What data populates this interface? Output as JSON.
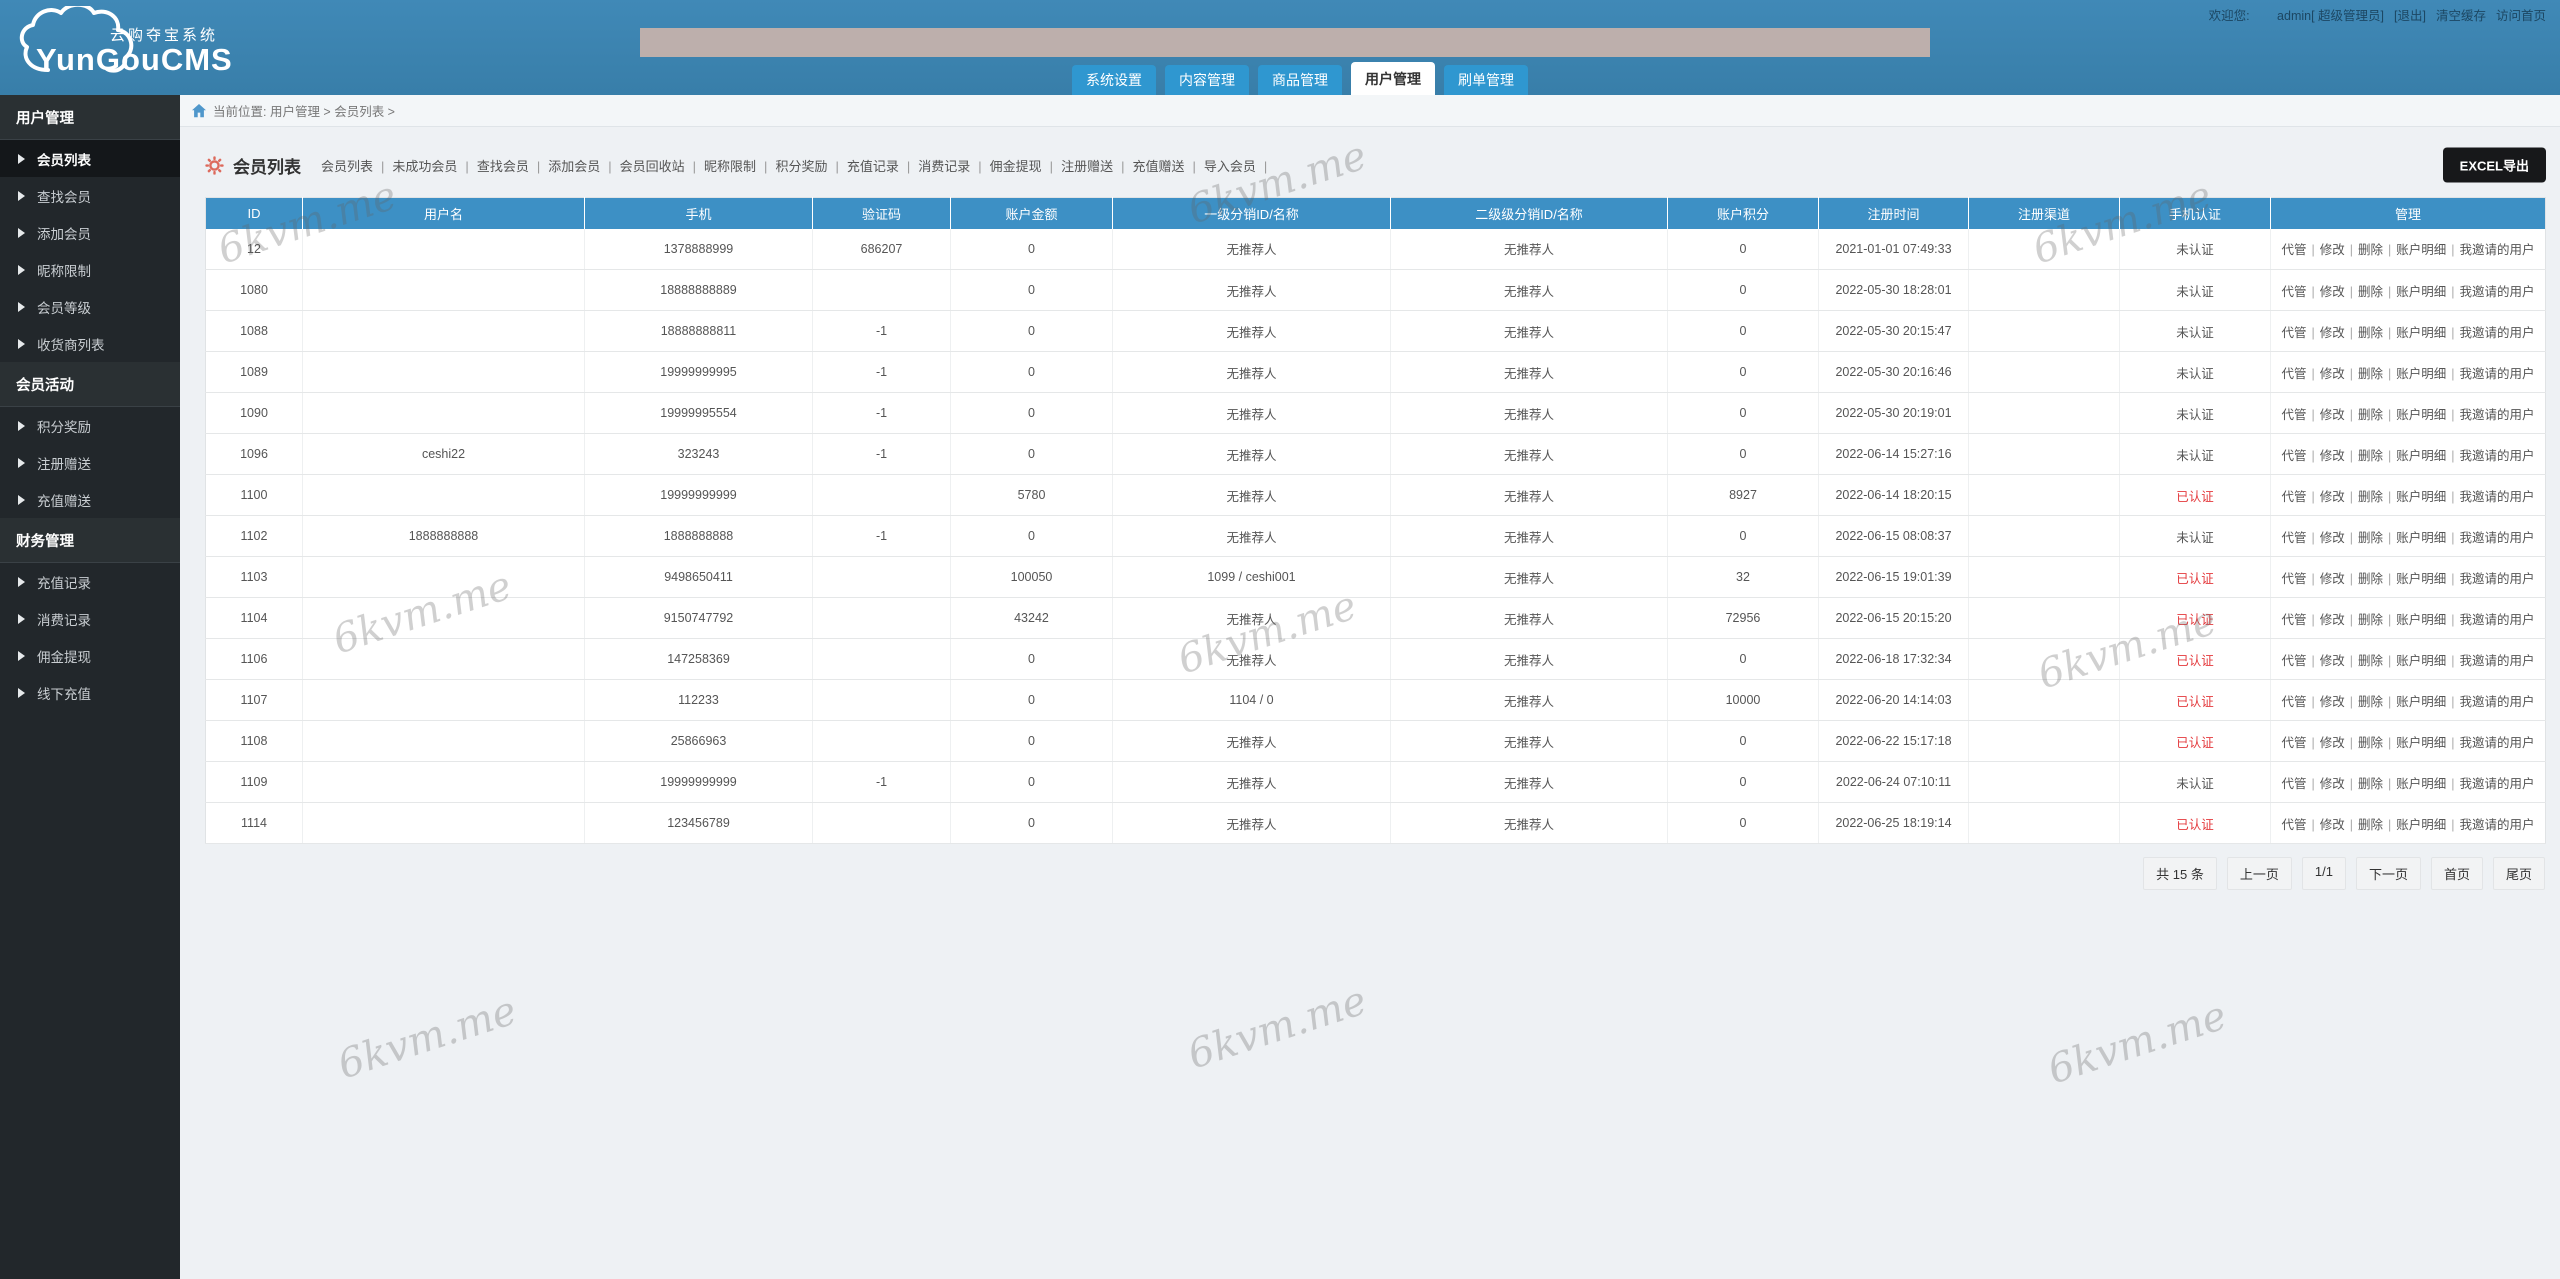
{
  "header": {
    "logo_title": "YunGouCMS",
    "logo_subtitle": "云购夺宝系统",
    "welcome_label": "欢迎您:",
    "user_links": [
      "admin[ 超级管理员]",
      "[退出]",
      "清空缓存",
      "访问首页"
    ],
    "tabs": [
      {
        "label": "系统设置",
        "active": false
      },
      {
        "label": "内容管理",
        "active": false
      },
      {
        "label": "商品管理",
        "active": false
      },
      {
        "label": "用户管理",
        "active": true
      },
      {
        "label": "刷单管理",
        "active": false
      }
    ]
  },
  "sidebar": {
    "sections": [
      {
        "title": "用户管理",
        "items": [
          {
            "label": "会员列表",
            "active": true
          },
          {
            "label": "查找会员",
            "active": false
          },
          {
            "label": "添加会员",
            "active": false
          },
          {
            "label": "昵称限制",
            "active": false
          },
          {
            "label": "会员等级",
            "active": false
          },
          {
            "label": "收货商列表",
            "active": false
          }
        ]
      },
      {
        "title": "会员活动",
        "items": [
          {
            "label": "积分奖励",
            "active": false
          },
          {
            "label": "注册赠送",
            "active": false
          },
          {
            "label": "充值赠送",
            "active": false
          }
        ]
      },
      {
        "title": "财务管理",
        "items": [
          {
            "label": "充值记录",
            "active": false
          },
          {
            "label": "消费记录",
            "active": false
          },
          {
            "label": "佣金提现",
            "active": false
          },
          {
            "label": "线下充值",
            "active": false
          }
        ]
      }
    ]
  },
  "breadcrumb": {
    "text": "当前位置: 用户管理 > 会员列表 >"
  },
  "toolbar": {
    "title": "会员列表",
    "links": [
      "会员列表",
      "未成功会员",
      "查找会员",
      "添加会员",
      "会员回收站",
      "昵称限制",
      "积分奖励",
      "充值记录",
      "消费记录",
      "佣金提现",
      "注册赠送",
      "充值赠送",
      "导入会员"
    ],
    "export_label": "EXCEL导出"
  },
  "table": {
    "headers": [
      "ID",
      "用户名",
      "手机",
      "验证码",
      "账户金额",
      "一级分销ID/名称",
      "二级级分销ID/名称",
      "账户积分",
      "注册时间",
      "注册渠道",
      "手机认证",
      "管理"
    ],
    "row_actions": [
      "代管",
      "修改",
      "删除",
      "账户明细",
      "我邀请的用户"
    ],
    "verified_ok_label": "已认证",
    "rows": [
      [
        "12",
        "",
        "1378888999",
        "686207",
        "0",
        "无推荐人",
        "无推荐人",
        "0",
        "2021-01-01 07:49:33",
        "",
        "未认证"
      ],
      [
        "1080",
        "",
        "18888888889",
        "",
        "0",
        "无推荐人",
        "无推荐人",
        "0",
        "2022-05-30 18:28:01",
        "",
        "未认证"
      ],
      [
        "1088",
        "",
        "18888888811",
        "-1",
        "0",
        "无推荐人",
        "无推荐人",
        "0",
        "2022-05-30 20:15:47",
        "",
        "未认证"
      ],
      [
        "1089",
        "",
        "19999999995",
        "-1",
        "0",
        "无推荐人",
        "无推荐人",
        "0",
        "2022-05-30 20:16:46",
        "",
        "未认证"
      ],
      [
        "1090",
        "",
        "19999995554",
        "-1",
        "0",
        "无推荐人",
        "无推荐人",
        "0",
        "2022-05-30 20:19:01",
        "",
        "未认证"
      ],
      [
        "1096",
        "ceshi22",
        "323243",
        "-1",
        "0",
        "无推荐人",
        "无推荐人",
        "0",
        "2022-06-14 15:27:16",
        "",
        "未认证"
      ],
      [
        "1100",
        "",
        "19999999999",
        "",
        "5780",
        "无推荐人",
        "无推荐人",
        "8927",
        "2022-06-14 18:20:15",
        "",
        "已认证"
      ],
      [
        "1102",
        "1888888888",
        "1888888888",
        "-1",
        "0",
        "无推荐人",
        "无推荐人",
        "0",
        "2022-06-15 08:08:37",
        "",
        "未认证"
      ],
      [
        "1103",
        "",
        "9498650411",
        "",
        "100050",
        "1099 / ceshi001",
        "无推荐人",
        "32",
        "2022-06-15 19:01:39",
        "",
        "已认证"
      ],
      [
        "1104",
        "",
        "9150747792",
        "",
        "43242",
        "无推荐人",
        "无推荐人",
        "72956",
        "2022-06-15 20:15:20",
        "",
        "已认证"
      ],
      [
        "1106",
        "",
        "147258369",
        "",
        "0",
        "无推荐人",
        "无推荐人",
        "0",
        "2022-06-18 17:32:34",
        "",
        "已认证"
      ],
      [
        "1107",
        "",
        "112233",
        "",
        "0",
        "1104 / 0",
        "无推荐人",
        "10000",
        "2022-06-20 14:14:03",
        "",
        "已认证"
      ],
      [
        "1108",
        "",
        "25866963",
        "",
        "0",
        "无推荐人",
        "无推荐人",
        "0",
        "2022-06-22 15:17:18",
        "",
        "已认证"
      ],
      [
        "1109",
        "",
        "19999999999",
        "-1",
        "0",
        "无推荐人",
        "无推荐人",
        "0",
        "2022-06-24 07:10:11",
        "",
        "未认证"
      ],
      [
        "1114",
        "",
        "123456789",
        "",
        "0",
        "无推荐人",
        "无推荐人",
        "0",
        "2022-06-25 18:19:14",
        "",
        "已认证"
      ]
    ]
  },
  "pagination": {
    "total": "共 15 条",
    "prev": "上一页",
    "current": "1/1",
    "next": "下一页",
    "first": "首页",
    "last": "尾页"
  },
  "watermark": {
    "text": "6kvm.me"
  },
  "colors": {
    "header_blue": "#3c83b1",
    "tab_blue": "#2f97d0",
    "table_header_blue": "#3d90c5",
    "sidebar_dark": "#22272b",
    "danger_red": "#e4393c",
    "export_black": "#17181a",
    "band_tan": "#c7b3ab"
  }
}
